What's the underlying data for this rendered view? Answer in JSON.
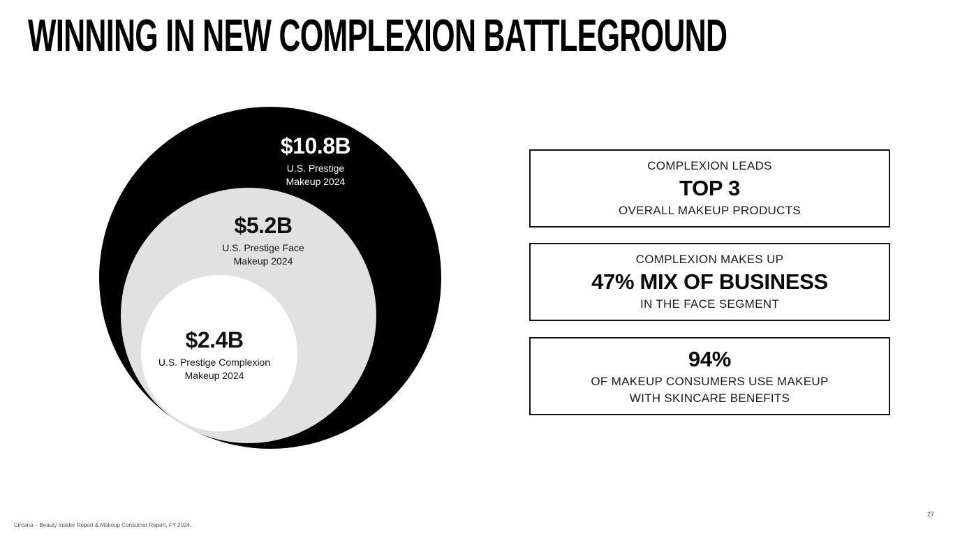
{
  "slide": {
    "title": "WINNING IN NEW COMPLEXION BATTLEGROUND",
    "page_number": "27",
    "source_note": "Circana – Beauty Insider Report & Makeup Consumer Report, FY 2024."
  },
  "colors": {
    "background": "#ffffff",
    "ink": "#000000",
    "circle_outer": "#000000",
    "circle_middle": "#e1e1e1",
    "circle_inner": "#ffffff",
    "outer_label_text": "#ffffff",
    "box_border": "#111111",
    "source_text": "#555555"
  },
  "bubble_chart": {
    "circles": [
      {
        "value": "$10.8B",
        "label_line1": "U.S. Prestige",
        "label_line2": "Makeup 2024"
      },
      {
        "value": "$5.2B",
        "label_line1": "U.S. Prestige Face",
        "label_line2": "Makeup 2024"
      },
      {
        "value": "$2.4B",
        "label_line1": "U.S. Prestige Complexion",
        "label_line2": "Makeup 2024"
      }
    ]
  },
  "stat_boxes": {
    "box1": {
      "top": "COMPLEXION LEADS",
      "headline": "TOP 3",
      "bottom": "OVERALL MAKEUP PRODUCTS"
    },
    "box2": {
      "top": "COMPLEXION MAKES UP",
      "headline": "47% MIX OF BUSINESS",
      "bottom": "IN THE FACE SEGMENT"
    },
    "box3": {
      "headline": "94%",
      "line1": "OF MAKEUP CONSUMERS USE MAKEUP",
      "line2": "WITH SKINCARE BENEFITS"
    }
  },
  "chart_data": {
    "type": "nested-circles",
    "title": "",
    "series": [
      {
        "name": "U.S. Prestige Makeup 2024",
        "value_usd_billions": 10.8,
        "label": "$10.8B",
        "color": "#000000"
      },
      {
        "name": "U.S. Prestige Face Makeup 2024",
        "value_usd_billions": 5.2,
        "label": "$5.2B",
        "color": "#e1e1e1"
      },
      {
        "name": "U.S. Prestige Complexion Makeup 2024",
        "value_usd_billions": 2.4,
        "label": "$2.4B",
        "color": "#ffffff"
      }
    ],
    "layout": "concentric circles nested toward bottom-left, area proportional to value, legend off, no axes",
    "annotations": [
      "COMPLEXION LEADS TOP 3 OVERALL MAKEUP PRODUCTS",
      "COMPLEXION MAKES UP 47% MIX OF BUSINESS IN THE FACE SEGMENT",
      "94% OF MAKEUP CONSUMERS USE MAKEUP WITH SKINCARE BENEFITS"
    ]
  }
}
